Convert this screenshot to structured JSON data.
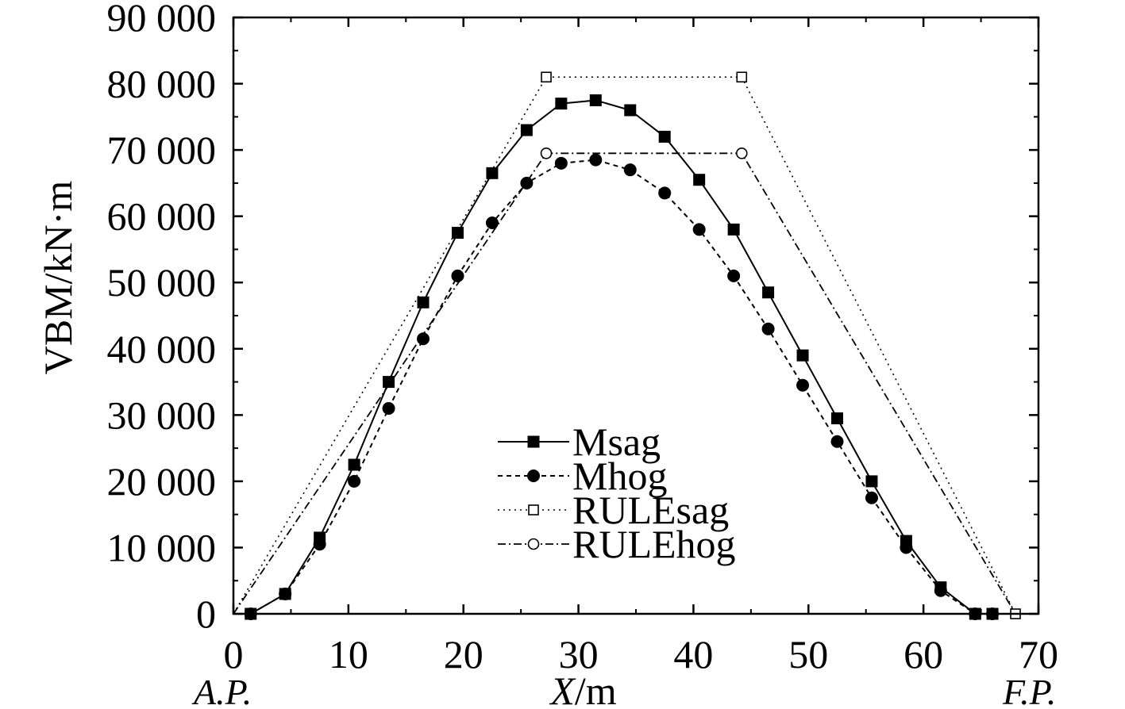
{
  "chart_data": {
    "type": "line",
    "xlabel_italic": "X",
    "xlabel_rest": "/m",
    "ylabel": "VBM/kN·m",
    "xlim": [
      0,
      70
    ],
    "ylim": [
      0,
      90000
    ],
    "x_ticks": [
      0,
      10,
      20,
      30,
      40,
      50,
      60,
      70
    ],
    "x_tick_labels": [
      "0",
      "10",
      "20",
      "30",
      "40",
      "50",
      "60",
      "70"
    ],
    "y_ticks": [
      0,
      10000,
      20000,
      30000,
      40000,
      50000,
      60000,
      70000,
      80000,
      90000
    ],
    "y_tick_labels": [
      "0",
      "10 000",
      "20 000",
      "30 000",
      "40 000",
      "50 000",
      "60 000",
      "70 000",
      "80 000",
      "90 000"
    ],
    "ap_label": "A.P.",
    "fp_label": "F.P.",
    "legend_position": "center",
    "series": [
      {
        "name": "Msag",
        "marker": "filled-square",
        "line": "solid",
        "x": [
          1.5,
          4.5,
          7.5,
          10.5,
          13.5,
          16.5,
          19.5,
          22.5,
          25.5,
          28.5,
          31.5,
          34.5,
          37.5,
          40.5,
          43.5,
          46.5,
          49.5,
          52.5,
          55.5,
          58.5,
          61.5,
          64.5,
          66.0
        ],
        "y": [
          0,
          3000,
          11500,
          22500,
          35000,
          47000,
          57500,
          66500,
          73000,
          77000,
          77500,
          76000,
          72000,
          65500,
          58000,
          48500,
          39000,
          29500,
          20000,
          11000,
          4000,
          0,
          0
        ]
      },
      {
        "name": "Mhog",
        "marker": "filled-circle",
        "line": "dashed",
        "x": [
          1.5,
          4.5,
          7.5,
          10.5,
          13.5,
          16.5,
          19.5,
          22.5,
          25.5,
          28.5,
          31.5,
          34.5,
          37.5,
          40.5,
          43.5,
          46.5,
          49.5,
          52.5,
          55.5,
          58.5,
          61.5,
          64.5,
          66.0
        ],
        "y": [
          0,
          3000,
          10500,
          20000,
          31000,
          41500,
          51000,
          59000,
          65000,
          68000,
          68500,
          67000,
          63500,
          58000,
          51000,
          43000,
          34500,
          26000,
          17500,
          10000,
          3500,
          0,
          0
        ]
      },
      {
        "name": "RULEsag",
        "marker": "open-square",
        "line": "dotted",
        "x": [
          0,
          27.2,
          44.2,
          68.0
        ],
        "y": [
          0,
          81000,
          81000,
          0
        ]
      },
      {
        "name": "RULEhog",
        "marker": "open-circle",
        "line": "dashdot",
        "x": [
          0,
          27.2,
          44.2,
          68.0
        ],
        "y": [
          0,
          69500,
          69500,
          0
        ]
      }
    ]
  }
}
